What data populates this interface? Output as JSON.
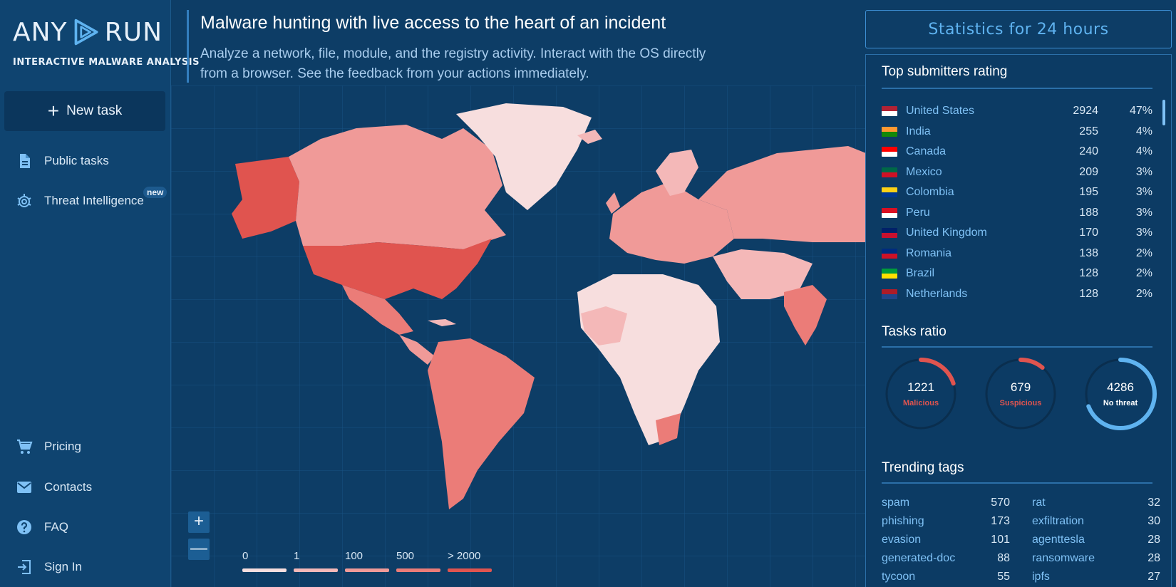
{
  "brand": {
    "word_left": "ANY",
    "word_right": "RUN",
    "tagline": "INTERACTIVE MALWARE ANALYSIS"
  },
  "sidebar": {
    "new_task": "New task",
    "top_items": [
      {
        "label": "Public tasks",
        "icon": "document-icon"
      },
      {
        "label": "Threat Intelligence",
        "icon": "bug-icon",
        "badge": "new"
      }
    ],
    "bottom_items": [
      {
        "label": "Pricing",
        "icon": "cart-icon"
      },
      {
        "label": "Contacts",
        "icon": "mail-icon"
      },
      {
        "label": "FAQ",
        "icon": "help-icon"
      },
      {
        "label": "Sign In",
        "icon": "sign-in-icon"
      }
    ]
  },
  "header": {
    "title": "Malware hunting with live access to the heart of an incident",
    "subtitle": "Analyze a network, file, module, and the registry activity. Interact with the OS directly from a browser. See the feedback from your actions immediately."
  },
  "map": {
    "zoom_in": "+",
    "zoom_out": "—",
    "legend": [
      {
        "label": "0",
        "color": "#f7dede"
      },
      {
        "label": "1",
        "color": "#f4b8b8"
      },
      {
        "label": "100",
        "color": "#f09a98"
      },
      {
        "label": "500",
        "color": "#eb7c78"
      },
      {
        "label": "> 2000",
        "color": "#e0544f"
      }
    ]
  },
  "stats": {
    "title": "Statistics for 24 hours",
    "submitters_title": "Top submitters rating",
    "submitters": [
      {
        "country": "United States",
        "count": "2924",
        "pct": "47%"
      },
      {
        "country": "India",
        "count": "255",
        "pct": "4%"
      },
      {
        "country": "Canada",
        "count": "240",
        "pct": "4%"
      },
      {
        "country": "Mexico",
        "count": "209",
        "pct": "3%"
      },
      {
        "country": "Colombia",
        "count": "195",
        "pct": "3%"
      },
      {
        "country": "Peru",
        "count": "188",
        "pct": "3%"
      },
      {
        "country": "United Kingdom",
        "count": "170",
        "pct": "3%"
      },
      {
        "country": "Romania",
        "count": "138",
        "pct": "2%"
      },
      {
        "country": "Brazil",
        "count": "128",
        "pct": "2%"
      },
      {
        "country": "Netherlands",
        "count": "128",
        "pct": "2%"
      }
    ],
    "tasks_title": "Tasks ratio",
    "tasks": [
      {
        "value": "1221",
        "label": "Malicious",
        "color": "#e0544f",
        "fraction": 0.2
      },
      {
        "value": "679",
        "label": "Suspicious",
        "color": "#e0544f",
        "fraction": 0.11
      },
      {
        "value": "4286",
        "label": "No threat",
        "color": "#5fb3f0",
        "fraction": 0.69
      }
    ],
    "tags_title": "Trending tags",
    "tags_left": [
      {
        "name": "spam",
        "count": "570"
      },
      {
        "name": "phishing",
        "count": "173"
      },
      {
        "name": "evasion",
        "count": "101"
      },
      {
        "name": "generated-doc",
        "count": "88"
      },
      {
        "name": "tycoon",
        "count": "55"
      }
    ],
    "tags_right": [
      {
        "name": "rat",
        "count": "32"
      },
      {
        "name": "exfiltration",
        "count": "30"
      },
      {
        "name": "agenttesla",
        "count": "28"
      },
      {
        "name": "ransomware",
        "count": "28"
      },
      {
        "name": "ipfs",
        "count": "27"
      }
    ]
  }
}
